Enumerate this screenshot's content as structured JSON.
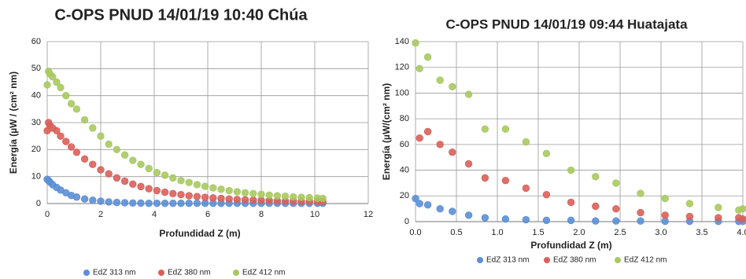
{
  "chart_data": [
    {
      "type": "scatter",
      "title": "C-OPS PNUD 14/01/19 10:40 Chúa",
      "x_label": "Profundidad Z (m)",
      "y_label": "Energía (µW / (cm² nm)",
      "x": [
        0,
        0.05,
        0.1,
        0.2,
        0.35,
        0.5,
        0.7,
        0.9,
        1.1,
        1.4,
        1.7,
        2.0,
        2.3,
        2.6,
        2.9,
        3.2,
        3.5,
        3.8,
        4.1,
        4.4,
        4.7,
        5.0,
        5.3,
        5.6,
        5.9,
        6.2,
        6.5,
        6.8,
        7.1,
        7.4,
        7.7,
        8.0,
        8.3,
        8.6,
        8.9,
        9.2,
        9.5,
        9.8,
        10.1,
        10.3
      ],
      "series": [
        {
          "name": "EdZ 313 nm",
          "color": "#5b8fd6",
          "values": [
            9,
            8.5,
            8,
            7,
            6,
            5,
            4,
            3,
            2.4,
            1.7,
            1.2,
            0.9,
            0.6,
            0.4,
            0.3,
            0.2,
            0.15,
            0.1,
            0.1,
            0.1,
            0.1,
            0.1,
            0.1,
            0.1,
            0.1,
            0.1,
            0.1,
            0.1,
            0.1,
            0.1,
            0.1,
            0.1,
            0.1,
            0.1,
            0.1,
            0.1,
            0.1,
            0.1,
            0.1,
            0.1
          ]
        },
        {
          "name": "EdZ 380 nm",
          "color": "#d9605a",
          "values": [
            27,
            30,
            29,
            28,
            27,
            25,
            23,
            21,
            19,
            16.5,
            14.5,
            12.5,
            11,
            9.5,
            8.3,
            7.2,
            6.3,
            5.5,
            4.8,
            4.2,
            3.7,
            3.3,
            2.9,
            2.6,
            2.3,
            2.1,
            1.9,
            1.7,
            1.5,
            1.4,
            1.3,
            1.2,
            1.1,
            1,
            0.9,
            0.9,
            0.8,
            0.8,
            0.7,
            0.7
          ]
        },
        {
          "name": "EdZ 412 nm",
          "color": "#a8c960",
          "values": [
            44,
            49,
            48,
            47,
            45,
            43,
            40,
            37,
            35,
            31,
            28,
            25,
            22,
            20,
            18,
            16,
            14.5,
            13,
            11.5,
            10.5,
            9.5,
            8.5,
            7.8,
            7,
            6.4,
            5.8,
            5.3,
            4.8,
            4.4,
            4,
            3.7,
            3.4,
            3.1,
            2.9,
            2.7,
            2.5,
            2.3,
            2.2,
            2,
            1.9
          ]
        }
      ],
      "xlim": [
        0,
        12
      ],
      "xticks": [
        0,
        2,
        4,
        6,
        8,
        10,
        12
      ],
      "ylim": [
        0,
        60
      ],
      "yticks": [
        0,
        10,
        20,
        30,
        40,
        50,
        60
      ],
      "grid": true,
      "legend": "bottom"
    },
    {
      "type": "scatter",
      "title": "C-OPS PNUD 14/01/19 09:44 Huatajata",
      "x_label": "Profundidad Z (m)",
      "y_label": "Energía (µW/(cm² nm)",
      "x": [
        0.0,
        0.05,
        0.15,
        0.3,
        0.45,
        0.65,
        0.85,
        1.1,
        1.35,
        1.6,
        1.9,
        2.2,
        2.45,
        2.75,
        3.05,
        3.35,
        3.7,
        3.95,
        4.0
      ],
      "series": [
        {
          "name": "EdZ 313 nm",
          "color": "#5b8fd6",
          "values": [
            18,
            14,
            13,
            10,
            8,
            5,
            3,
            2,
            1.5,
            1,
            1,
            0.5,
            0.5,
            0.5,
            0.3,
            0.3,
            0.2,
            0.2,
            0.2
          ]
        },
        {
          "name": "EdZ 380 nm",
          "color": "#d9605a",
          "values": [
            null,
            65,
            70,
            60,
            54,
            45,
            34,
            32,
            26,
            21,
            15,
            12,
            10,
            7,
            5,
            4,
            3,
            3,
            2
          ]
        },
        {
          "name": "EdZ 412 nm",
          "color": "#a8c960",
          "values": [
            139,
            119,
            128,
            110,
            105,
            99,
            72,
            72,
            62,
            53,
            40,
            35,
            30,
            22,
            18,
            14,
            11,
            9,
            10
          ]
        }
      ],
      "xlim": [
        0,
        4
      ],
      "xticks": [
        {
          "value": 0,
          "label": "0.0"
        },
        0.5,
        {
          "value": 1,
          "label": "1.0"
        },
        1.5,
        {
          "value": 2,
          "label": "2.0"
        },
        2.5,
        {
          "value": 3,
          "label": "3.0"
        },
        3.5,
        {
          "value": 4,
          "label": "4.0"
        }
      ],
      "ylim": [
        0,
        140
      ],
      "yticks": [
        0,
        20,
        40,
        60,
        80,
        100,
        120,
        140
      ],
      "grid": true,
      "legend": "bottom"
    }
  ]
}
